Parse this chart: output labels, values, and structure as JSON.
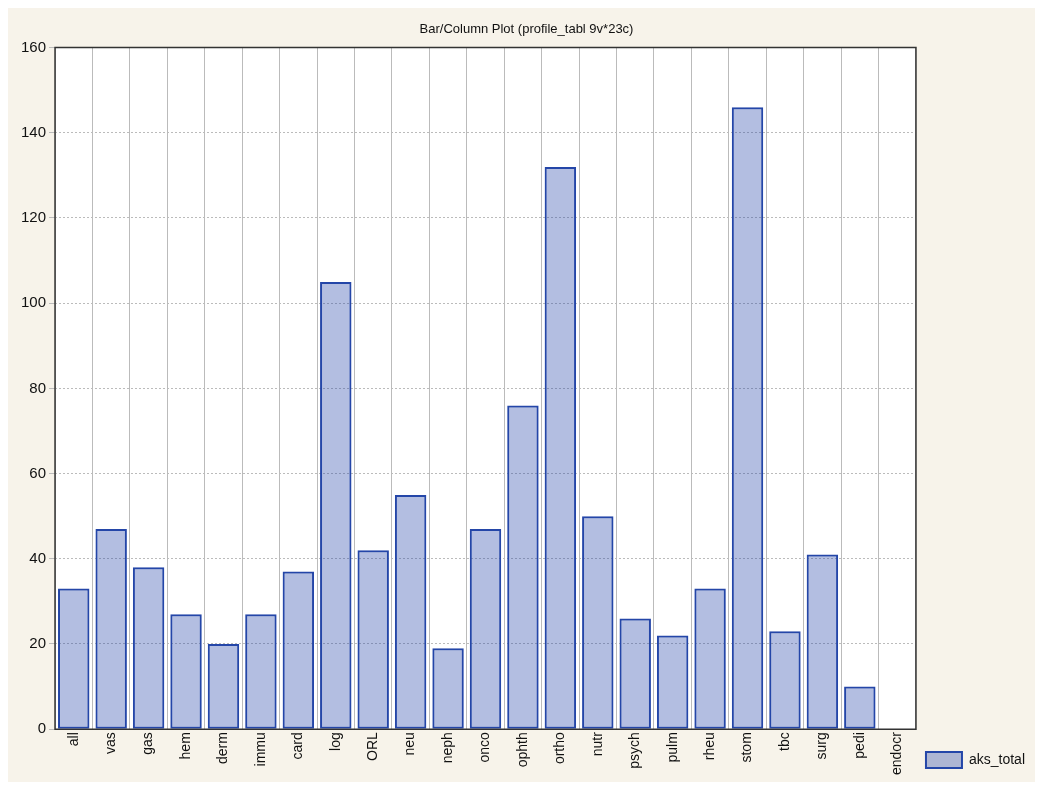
{
  "chart_data": {
    "type": "bar",
    "title": "Bar/Column Plot (profile_tabl 9v*23c)",
    "categories": [
      "all",
      "vas",
      "gas",
      "hem",
      "derm",
      "immu",
      "card",
      "log",
      "ORL",
      "neu",
      "neph",
      "onco",
      "ophth",
      "ortho",
      "nutr",
      "psych",
      "pulm",
      "rheu",
      "stom",
      "tbc",
      "surg",
      "pedi",
      "endocr"
    ],
    "series": [
      {
        "name": "aks_total",
        "color": "#2446a8",
        "values": [
          33,
          47,
          38,
          27,
          20,
          27,
          37,
          105,
          42,
          55,
          19,
          47,
          76,
          132,
          50,
          26,
          22,
          33,
          146,
          23,
          41,
          10,
          0
        ]
      }
    ],
    "ylim": [
      0,
      160
    ],
    "yticks": [
      0,
      20,
      40,
      60,
      80,
      100,
      120,
      140,
      160
    ],
    "grid": true,
    "legend": "bottom right"
  }
}
